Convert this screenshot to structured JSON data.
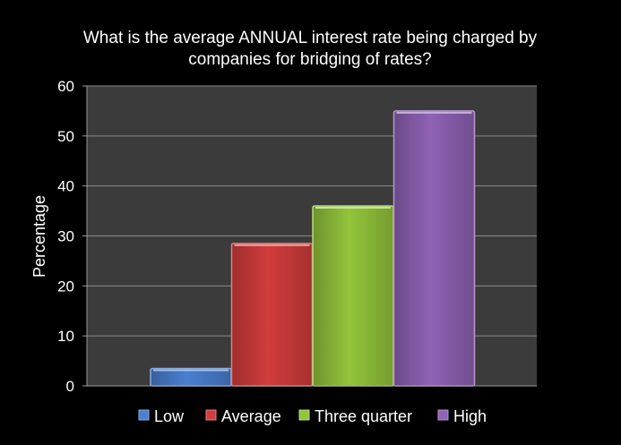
{
  "chart_data": {
    "type": "bar",
    "title": "What is the average ANNUAL interest rate being charged by companies for bridging of rates?",
    "title_lines": [
      "What is the average ANNUAL interest rate being charged by",
      "companies for bridging of rates?"
    ],
    "ylabel": "Percentage",
    "xlabel": "",
    "ylim": [
      0,
      60
    ],
    "yticks": [
      0,
      10,
      20,
      30,
      40,
      50,
      60
    ],
    "grid": true,
    "legend_position": "bottom",
    "series": [
      {
        "name": "Low",
        "value": 3.5,
        "color": "#4a7fd0"
      },
      {
        "name": "Average",
        "value": 28.5,
        "color": "#d23c3c"
      },
      {
        "name": "Three quarter",
        "value": 36,
        "color": "#93c43b"
      },
      {
        "name": "High",
        "value": 55,
        "color": "#8f62b5"
      }
    ]
  }
}
